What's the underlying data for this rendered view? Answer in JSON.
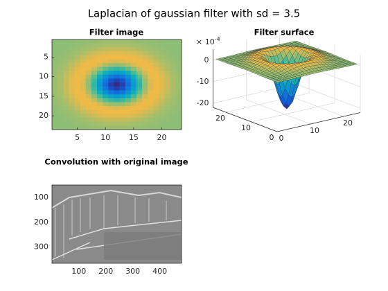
{
  "title": "Laplacian of gaussian filter with sd = 3.5",
  "chart_data": [
    {
      "type": "heatmap",
      "title": "Filter image",
      "xlim": [
        0.5,
        23.5
      ],
      "ylim": [
        0.5,
        23.5
      ],
      "xticks": [
        5,
        10,
        15,
        20
      ],
      "yticks": [
        5,
        10,
        15,
        20
      ]
    },
    {
      "type": "surface",
      "title": "Filter surface",
      "exponent_label": {
        "base": "× 10",
        "power": "-4"
      },
      "xlim": [
        0,
        25
      ],
      "ylim": [
        0,
        25
      ],
      "zlim": [
        -22,
        5
      ],
      "xticks": [
        0,
        10,
        20
      ],
      "yticks": [
        0,
        10,
        20
      ],
      "zticks": [
        0,
        -10,
        -20
      ]
    },
    {
      "type": "image",
      "title": "Convolution with original image",
      "xlim": [
        0.5,
        480.5
      ],
      "ylim": [
        50,
        365
      ],
      "xticks": [
        100,
        200,
        300,
        400
      ],
      "yticks": [
        100,
        200,
        300
      ]
    }
  ]
}
